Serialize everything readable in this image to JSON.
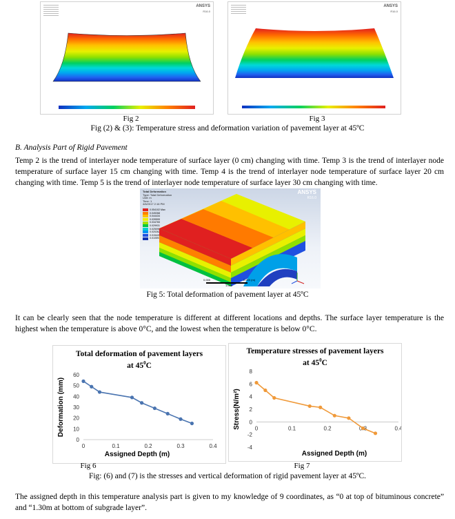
{
  "fig2": {
    "caption": "Fig 2",
    "logo": "ANSYS",
    "logo_sub": "R16.0"
  },
  "fig3": {
    "caption": "Fig 3",
    "logo": "ANSYS",
    "logo_sub": "R16.0"
  },
  "fig23_caption": "Fig (2) & (3): Temperature stress and deformation variation of pavement layer at 45ºC",
  "section": {
    "heading": "B.   Analysis Part of Rigid Pavement",
    "paragraph": "Temp 2 is the trend of interlayer node temperature of surface layer (0 cm) changing with time. Temp 3 is the trend of interlayer node temperature of surface layer 15 cm changing with time. Temp 4 is the trend of interlayer node temperature of surface layer 20 cm changing with time. Temp 5 is the trend of interlayer node temperature of surface layer 30 cm changing with time."
  },
  "fig5": {
    "header_lines": [
      "Total Deformation",
      "Type: Total Deformation",
      "Unit: m",
      "Time: 1",
      "4/6/2017 2:16 PM"
    ],
    "legend": [
      "0.054102 Max",
      "0.049268",
      "0.044434",
      "0.039599",
      "0.034765",
      "0.029931",
      "0.025096",
      "0.020262",
      "0.015428",
      "0.010593 Min"
    ],
    "logo": "ANSYS",
    "logo_sub": "R16.0",
    "scale_labels": [
      "0.000",
      "1.000",
      "2.000 (m)"
    ],
    "caption": "Fig 5: Total deformation of pavement layer at 45ºC"
  },
  "paragraph2": "It can be clearly seen that the node temperature is different at different locations and depths. The surface layer temperature is the highest when the temperature is above 0°C, and the lowest when the temperature is below 0°C.",
  "chart_data": [
    {
      "type": "line",
      "title_line1": "Total deformation of pavement layers",
      "title_line2": "at 45",
      "title_sup": "0",
      "title_end": "C",
      "xlabel": "Assigned Depth (m)",
      "ylabel": "Deformation (mm)",
      "xlim": [
        0,
        0.4
      ],
      "ylim": [
        0,
        60
      ],
      "x_ticks": [
        "0",
        "0.1",
        "0.2",
        "0.3",
        "0.4"
      ],
      "y_ticks": [
        "0",
        "10",
        "20",
        "30",
        "40",
        "50",
        "60"
      ],
      "color": "#4a74b0",
      "x": [
        0,
        0.025,
        0.05,
        0.15,
        0.18,
        0.22,
        0.26,
        0.3,
        0.335
      ],
      "y": [
        54,
        49,
        44,
        39,
        34,
        29,
        24,
        19,
        15
      ]
    },
    {
      "type": "line",
      "title_line1": "Temperature stresses of pavement layers",
      "title_line2": "at 45",
      "title_sup": "0",
      "title_end": "C",
      "xlabel": "Assigned Depth (m)",
      "ylabel": "Stress(N/m²)",
      "xlim": [
        0,
        0.4
      ],
      "ylim": [
        -4,
        8
      ],
      "x_ticks": [
        "0",
        "0.1",
        "0.2",
        "0.3",
        "0.4"
      ],
      "y_ticks": [
        "-4",
        "-2",
        "0",
        "2",
        "4",
        "6",
        "8"
      ],
      "color": "#f09a3a",
      "x": [
        0,
        0.025,
        0.05,
        0.15,
        0.18,
        0.22,
        0.26,
        0.3,
        0.335
      ],
      "y": [
        6.2,
        5,
        3.8,
        2.5,
        2.3,
        1,
        0.6,
        -1,
        -1.8
      ]
    }
  ],
  "fig6_caption": "Fig 6",
  "fig7_caption": "Fig 7",
  "fig67_caption": "Fig: (6) and (7) is the stresses and vertical deformation of rigid pavement layer at 45ºC.",
  "paragraph3": "The assigned depth in this temperature analysis part is given to my knowledge of 9 coordinates, as “0 at top of bituminous concrete” and “1.30m at bottom of subgrade layer”."
}
